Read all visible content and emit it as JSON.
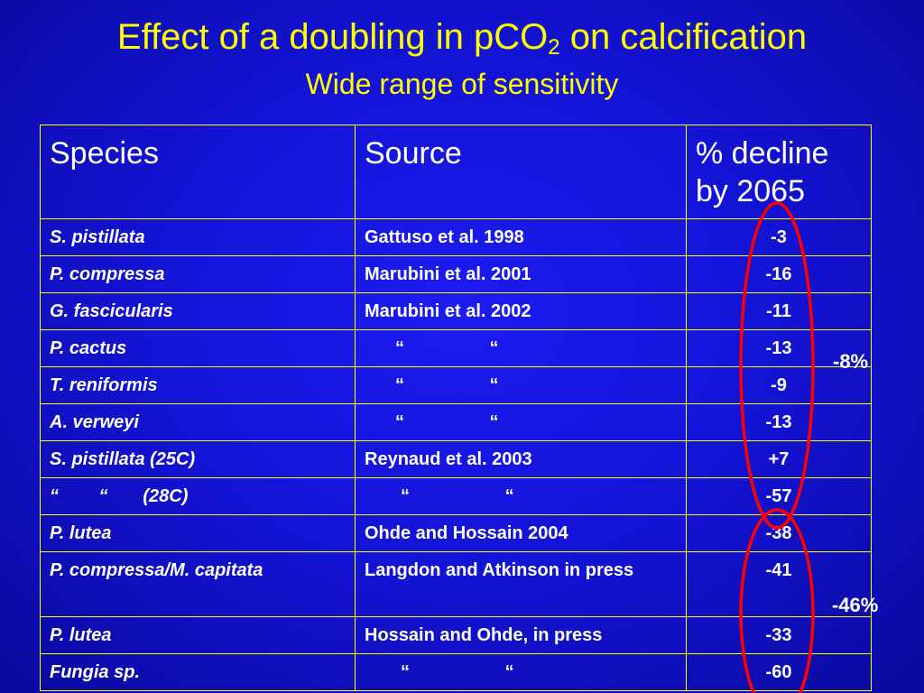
{
  "slide": {
    "title_main": "Effect of a doubling in pCO",
    "title_sub": "2",
    "title_tail": " on calcification",
    "subtitle": "Wide range of sensitivity"
  },
  "table": {
    "headers": [
      "Species",
      "Source",
      "% decline by 2065"
    ],
    "rows": [
      {
        "species": "S. pistillata",
        "source": "Gattuso et al. 1998",
        "pct": "-3"
      },
      {
        "species": "P. compressa",
        "source": "Marubini et al. 2001",
        "pct": "-16"
      },
      {
        "species": "G. fascicularis",
        "source": "Marubini et al. 2002",
        "pct": "-11"
      },
      {
        "species": "P. cactus",
        "source": "“                 “",
        "pct": "-13"
      },
      {
        "species": "T. reniformis",
        "source": "“                 “",
        "pct": "-9"
      },
      {
        "species": "A. verweyi",
        "source": "“                 “",
        "pct": "-13"
      },
      {
        "species": "S. pistillata (25C)",
        "source": "Reynaud et al. 2003",
        "pct": "+7"
      },
      {
        "species": "“        “       (28C)",
        "source": "“                   “",
        "pct": "-57"
      },
      {
        "species": "P. lutea",
        "source": "Ohde and Hossain 2004",
        "pct": "-38"
      },
      {
        "species": "P. compressa/M. capitata",
        "source": "Langdon and Atkinson in press",
        "pct": "-41"
      },
      {
        "species": "P. lutea",
        "source": "Hossain and Ohde, in press",
        "pct": "-33"
      },
      {
        "species": "Fungia sp.",
        "source": "“                   “",
        "pct": "-60"
      }
    ]
  },
  "annotations": {
    "group1_avg": "-8%",
    "group2_avg": "-46%",
    "oval_color": "#ff0000"
  },
  "colors": {
    "background": "#1414d8",
    "title": "#ffff00",
    "table_border": "#ffff00",
    "text": "#ffffff"
  }
}
